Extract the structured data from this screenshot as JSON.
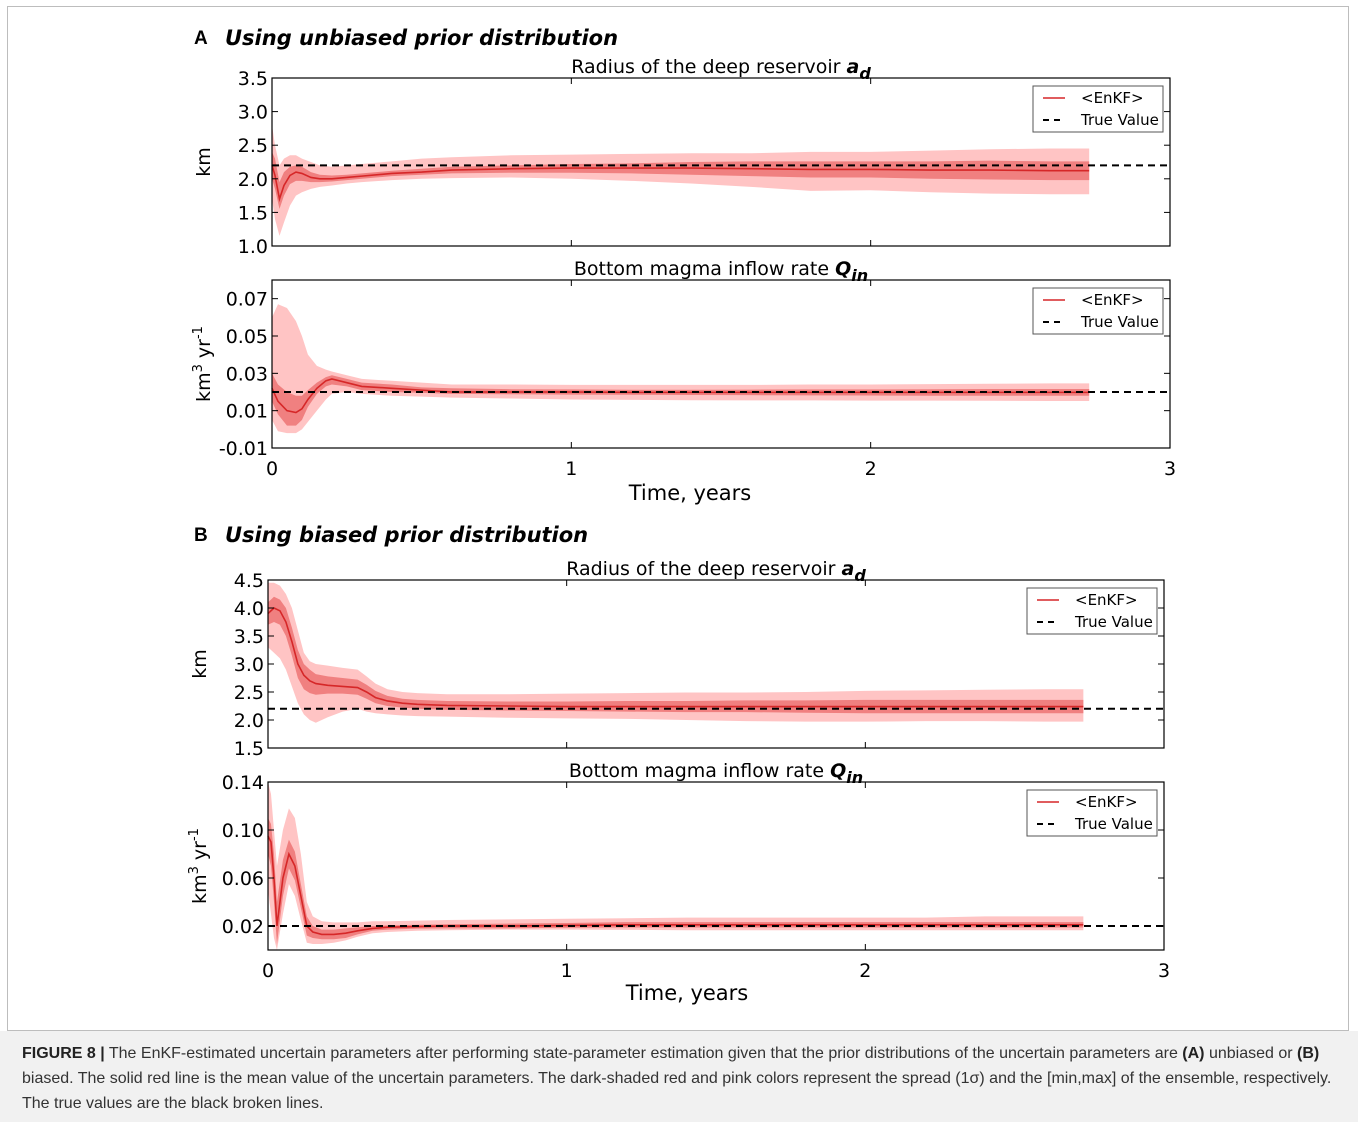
{
  "figure": {
    "panel_a": {
      "letter": "A",
      "title": "Using unbiased prior distribution"
    },
    "panel_b": {
      "letter": "B",
      "title": "Using biased prior distribution"
    },
    "xlabel": "Time, years"
  },
  "colors": {
    "mean": "#d62728",
    "sigma_band": "#f08080",
    "minmax_band": "#ffc4c4",
    "true": "#000000"
  },
  "chart_data": [
    {
      "type": "line",
      "panel": "A",
      "title_text": "Radius of the deep reservoir",
      "title_symbol": "a",
      "title_subscript": "d",
      "ylabel": "km",
      "xlim": [
        0,
        3
      ],
      "ylim": [
        1.0,
        3.5
      ],
      "yticks": [
        "1.0",
        "1.5",
        "2.0",
        "2.5",
        "3.0",
        "3.5"
      ],
      "xticks": [],
      "legend": {
        "mean_label": "<EnKF>",
        "true_label": "True Value",
        "placement": "upper-right"
      },
      "true_value": 2.2,
      "series": {
        "x": [
          0.0,
          0.01,
          0.025,
          0.04,
          0.06,
          0.08,
          0.1,
          0.13,
          0.16,
          0.2,
          0.25,
          0.3,
          0.4,
          0.5,
          0.6,
          0.8,
          1.0,
          1.2,
          1.4,
          1.6,
          1.8,
          2.0,
          2.2,
          2.4,
          2.6,
          2.73
        ],
        "mean": [
          2.2,
          2.05,
          1.7,
          1.9,
          2.05,
          2.1,
          2.08,
          2.02,
          2.0,
          2.0,
          2.02,
          2.04,
          2.08,
          2.1,
          2.13,
          2.15,
          2.16,
          2.16,
          2.16,
          2.15,
          2.14,
          2.14,
          2.13,
          2.13,
          2.12,
          2.12
        ],
        "sd_low": [
          2.0,
          1.85,
          1.55,
          1.75,
          1.92,
          1.97,
          1.97,
          1.95,
          1.95,
          1.96,
          1.98,
          2.0,
          2.04,
          2.06,
          2.08,
          2.09,
          2.09,
          2.08,
          2.06,
          2.04,
          2.02,
          2.02,
          2.0,
          1.99,
          1.98,
          1.98
        ],
        "sd_high": [
          2.4,
          2.3,
          1.95,
          2.1,
          2.18,
          2.2,
          2.18,
          2.1,
          2.06,
          2.05,
          2.06,
          2.08,
          2.12,
          2.15,
          2.18,
          2.2,
          2.22,
          2.23,
          2.25,
          2.26,
          2.26,
          2.26,
          2.26,
          2.27,
          2.26,
          2.26
        ],
        "min": [
          1.7,
          1.4,
          1.15,
          1.35,
          1.6,
          1.75,
          1.8,
          1.85,
          1.88,
          1.9,
          1.93,
          1.95,
          1.98,
          2.0,
          2.01,
          2.02,
          2.0,
          1.97,
          1.93,
          1.88,
          1.82,
          1.83,
          1.8,
          1.78,
          1.77,
          1.77
        ],
        "max": [
          2.8,
          2.5,
          2.2,
          2.3,
          2.35,
          2.35,
          2.3,
          2.25,
          2.2,
          2.18,
          2.2,
          2.22,
          2.26,
          2.3,
          2.32,
          2.35,
          2.36,
          2.37,
          2.38,
          2.38,
          2.4,
          2.4,
          2.42,
          2.44,
          2.45,
          2.45
        ]
      }
    },
    {
      "type": "line",
      "panel": "A",
      "title_text": "Bottom magma inflow rate",
      "title_symbol": "Q",
      "title_subscript": "in",
      "ylabel_base": "km",
      "ylabel_sup": "3",
      "ylabel_base2": " yr",
      "ylabel_sup2": "-1",
      "xlim": [
        0,
        3
      ],
      "ylim": [
        -0.01,
        0.08
      ],
      "yticks": [
        "-0.01",
        "0.01",
        "0.03",
        "0.05",
        "0.07"
      ],
      "ytick_values": [
        -0.01,
        0.01,
        0.03,
        0.05,
        0.07
      ],
      "xticks": [
        "0",
        "1",
        "2",
        "3"
      ],
      "legend": {
        "mean_label": "<EnKF>",
        "true_label": "True Value",
        "placement": "upper-right"
      },
      "true_value": 0.02,
      "series": {
        "x": [
          0.0,
          0.02,
          0.05,
          0.08,
          0.1,
          0.12,
          0.15,
          0.18,
          0.2,
          0.25,
          0.3,
          0.4,
          0.5,
          0.6,
          0.8,
          1.0,
          1.2,
          1.4,
          1.6,
          1.8,
          2.0,
          2.2,
          2.4,
          2.6,
          2.73
        ],
        "mean": [
          0.022,
          0.015,
          0.01,
          0.009,
          0.011,
          0.016,
          0.022,
          0.026,
          0.027,
          0.025,
          0.023,
          0.022,
          0.021,
          0.02,
          0.02,
          0.02,
          0.0198,
          0.0198,
          0.0198,
          0.0198,
          0.0198,
          0.0198,
          0.0198,
          0.0198,
          0.0198
        ],
        "sd_low": [
          0.015,
          0.008,
          0.002,
          0.002,
          0.005,
          0.012,
          0.019,
          0.023,
          0.024,
          0.023,
          0.021,
          0.02,
          0.0195,
          0.019,
          0.0188,
          0.0186,
          0.0185,
          0.0184,
          0.0183,
          0.0182,
          0.0181,
          0.018,
          0.018,
          0.018,
          0.018
        ],
        "sd_high": [
          0.03,
          0.024,
          0.02,
          0.018,
          0.018,
          0.021,
          0.025,
          0.028,
          0.029,
          0.027,
          0.025,
          0.024,
          0.0225,
          0.022,
          0.0215,
          0.0214,
          0.0212,
          0.0212,
          0.0213,
          0.0214,
          0.0214,
          0.0215,
          0.0216,
          0.0216,
          0.0216
        ],
        "min": [
          0.005,
          -0.001,
          -0.002,
          -0.002,
          0.0,
          0.004,
          0.01,
          0.016,
          0.019,
          0.02,
          0.019,
          0.018,
          0.0175,
          0.017,
          0.0165,
          0.016,
          0.0158,
          0.0156,
          0.0155,
          0.0155,
          0.0154,
          0.0154,
          0.0153,
          0.0152,
          0.0152
        ],
        "max": [
          0.06,
          0.067,
          0.065,
          0.058,
          0.05,
          0.04,
          0.034,
          0.032,
          0.031,
          0.029,
          0.027,
          0.026,
          0.025,
          0.024,
          0.024,
          0.0238,
          0.0238,
          0.0238,
          0.0238,
          0.024,
          0.024,
          0.0242,
          0.0244,
          0.0246,
          0.0246
        ]
      }
    },
    {
      "type": "line",
      "panel": "B",
      "title_text": "Radius of the deep reservoir",
      "title_symbol": "a",
      "title_subscript": "d",
      "ylabel": "km",
      "xlim": [
        0,
        3
      ],
      "ylim": [
        1.5,
        4.5
      ],
      "yticks": [
        "1.5",
        "2.0",
        "2.5",
        "3.0",
        "3.5",
        "4.0",
        "4.5"
      ],
      "xticks": [],
      "legend": {
        "mean_label": "<EnKF>",
        "true_label": "True Value",
        "placement": "upper-right"
      },
      "true_value": 2.2,
      "series": {
        "x": [
          0.0,
          0.02,
          0.04,
          0.06,
          0.08,
          0.1,
          0.12,
          0.14,
          0.16,
          0.2,
          0.25,
          0.3,
          0.33,
          0.36,
          0.4,
          0.45,
          0.5,
          0.6,
          0.8,
          1.0,
          1.2,
          1.4,
          1.6,
          1.8,
          2.0,
          2.2,
          2.4,
          2.6,
          2.73
        ],
        "mean": [
          3.9,
          4.0,
          3.95,
          3.75,
          3.4,
          3.0,
          2.8,
          2.7,
          2.65,
          2.62,
          2.6,
          2.58,
          2.5,
          2.4,
          2.34,
          2.3,
          2.28,
          2.26,
          2.25,
          2.24,
          2.24,
          2.24,
          2.24,
          2.24,
          2.24,
          2.24,
          2.24,
          2.24,
          2.24
        ],
        "sd_low": [
          3.7,
          3.75,
          3.7,
          3.5,
          3.15,
          2.75,
          2.55,
          2.48,
          2.45,
          2.47,
          2.47,
          2.45,
          2.38,
          2.3,
          2.25,
          2.22,
          2.2,
          2.18,
          2.17,
          2.16,
          2.15,
          2.14,
          2.14,
          2.13,
          2.12,
          2.12,
          2.12,
          2.12,
          2.12
        ],
        "sd_high": [
          4.1,
          4.2,
          4.15,
          4.0,
          3.65,
          3.25,
          3.0,
          2.9,
          2.82,
          2.78,
          2.75,
          2.72,
          2.63,
          2.52,
          2.43,
          2.38,
          2.36,
          2.34,
          2.33,
          2.33,
          2.34,
          2.34,
          2.35,
          2.35,
          2.36,
          2.36,
          2.36,
          2.36,
          2.36
        ],
        "min": [
          3.3,
          3.2,
          3.1,
          2.9,
          2.6,
          2.3,
          2.1,
          2.0,
          1.95,
          2.05,
          2.15,
          2.2,
          2.15,
          2.12,
          2.1,
          2.08,
          2.07,
          2.06,
          2.04,
          2.03,
          2.02,
          2.0,
          1.98,
          1.97,
          1.97,
          1.98,
          1.98,
          1.97,
          1.97
        ],
        "max": [
          4.45,
          4.45,
          4.4,
          4.25,
          4.0,
          3.6,
          3.2,
          3.05,
          3.0,
          2.97,
          2.93,
          2.9,
          2.78,
          2.65,
          2.55,
          2.5,
          2.48,
          2.46,
          2.46,
          2.47,
          2.48,
          2.49,
          2.49,
          2.5,
          2.52,
          2.53,
          2.54,
          2.55,
          2.55
        ]
      }
    },
    {
      "type": "line",
      "panel": "B",
      "title_text": "Bottom magma inflow rate",
      "title_symbol": "Q",
      "title_subscript": "in",
      "ylabel_base": "km",
      "ylabel_sup": "3",
      "ylabel_base2": " yr",
      "ylabel_sup2": "-1",
      "xlim": [
        0,
        3
      ],
      "ylim": [
        0.0,
        0.14
      ],
      "yticks": [
        "0.02",
        "0.06",
        "0.10",
        "0.14"
      ],
      "ytick_values": [
        0.02,
        0.06,
        0.1,
        0.14
      ],
      "xticks": [
        "0",
        "1",
        "2",
        "3"
      ],
      "legend": {
        "mean_label": "<EnKF>",
        "true_label": "True Value",
        "placement": "upper-right"
      },
      "true_value": 0.02,
      "series": {
        "x": [
          0.0,
          0.01,
          0.02,
          0.03,
          0.05,
          0.07,
          0.09,
          0.11,
          0.13,
          0.15,
          0.18,
          0.22,
          0.26,
          0.3,
          0.35,
          0.4,
          0.5,
          0.6,
          0.8,
          1.0,
          1.2,
          1.4,
          1.6,
          1.8,
          2.0,
          2.2,
          2.4,
          2.6,
          2.73
        ],
        "mean": [
          0.095,
          0.09,
          0.06,
          0.02,
          0.06,
          0.08,
          0.07,
          0.045,
          0.02,
          0.015,
          0.013,
          0.013,
          0.014,
          0.016,
          0.018,
          0.019,
          0.0195,
          0.02,
          0.02,
          0.0205,
          0.021,
          0.021,
          0.021,
          0.021,
          0.021,
          0.021,
          0.021,
          0.021,
          0.021
        ],
        "sd_low": [
          0.08,
          0.07,
          0.04,
          0.005,
          0.045,
          0.068,
          0.058,
          0.035,
          0.012,
          0.01,
          0.009,
          0.009,
          0.01,
          0.013,
          0.016,
          0.017,
          0.0178,
          0.018,
          0.018,
          0.0185,
          0.0188,
          0.0188,
          0.0188,
          0.0188,
          0.0188,
          0.0188,
          0.0188,
          0.0188,
          0.0188
        ],
        "sd_high": [
          0.11,
          0.105,
          0.08,
          0.04,
          0.075,
          0.092,
          0.082,
          0.055,
          0.028,
          0.02,
          0.017,
          0.017,
          0.018,
          0.019,
          0.02,
          0.0205,
          0.021,
          0.0215,
          0.022,
          0.0225,
          0.0232,
          0.0232,
          0.0232,
          0.0232,
          0.0232,
          0.0232,
          0.0232,
          0.0232,
          0.0232
        ],
        "min": [
          0.05,
          0.03,
          0.01,
          0.0,
          0.03,
          0.055,
          0.045,
          0.025,
          0.006,
          0.005,
          0.005,
          0.006,
          0.008,
          0.011,
          0.014,
          0.015,
          0.016,
          0.0165,
          0.017,
          0.017,
          0.0168,
          0.0165,
          0.0165,
          0.0165,
          0.0165,
          0.0165,
          0.0165,
          0.0165,
          0.0165
        ],
        "max": [
          0.14,
          0.13,
          0.1,
          0.07,
          0.1,
          0.118,
          0.11,
          0.08,
          0.04,
          0.028,
          0.024,
          0.023,
          0.023,
          0.023,
          0.024,
          0.024,
          0.0245,
          0.025,
          0.0255,
          0.026,
          0.0265,
          0.027,
          0.027,
          0.027,
          0.027,
          0.027,
          0.028,
          0.028,
          0.028
        ]
      }
    }
  ],
  "caption": {
    "label": "FIGURE 8 |",
    "text_1": " The EnKF-estimated uncertain parameters after performing state-parameter estimation given that the prior distributions of the uncertain parameters are ",
    "a_tag": "(A)",
    "text_2": " unbiased or ",
    "b_tag": "(B)",
    "text_3": " biased. The solid red line is the mean value of the uncertain parameters. The dark-shaded red and pink colors represent the spread (1σ) and the [min,max] of the ensemble, respectively. The true values are the black broken lines."
  }
}
